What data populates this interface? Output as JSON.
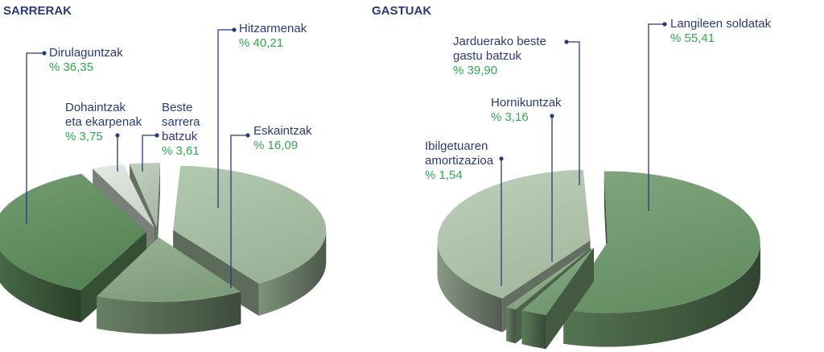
{
  "colors": {
    "label_text": "#2b3a78",
    "value_text": "#2fa84f",
    "leader": "#2b3a78"
  },
  "chart_data": [
    {
      "type": "pie",
      "title": "SARRERAK",
      "three_d": true,
      "exploded": true,
      "slices": [
        {
          "label": [
            "Hitzarmenak"
          ],
          "value_text": "% 40,21",
          "value": 40.21,
          "color": "#a9c3a5"
        },
        {
          "label": [
            "Eskaintzak"
          ],
          "value_text": "% 16,09",
          "value": 16.09,
          "color": "#8aaa86"
        },
        {
          "label": [
            "Dirulaguntzak"
          ],
          "value_text": "% 36,35",
          "value": 36.35,
          "color": "#5f8f5e"
        },
        {
          "label": [
            "Dohaintzak",
            "eta ekarpenak"
          ],
          "value_text": "% 3,75",
          "value": 3.75,
          "color": "#dfe7dd"
        },
        {
          "label": [
            "Beste",
            "sarrera",
            "batzuk"
          ],
          "value_text": "% 3,61",
          "value": 3.61,
          "color": "#b7cbb4"
        }
      ]
    },
    {
      "type": "pie",
      "title": "GASTUAK",
      "three_d": true,
      "exploded": true,
      "slices": [
        {
          "label": [
            "Langileen soldatak"
          ],
          "value_text": "% 55,41",
          "value": 55.41,
          "color": "#6f9a6c"
        },
        {
          "label": [
            "Hornikuntzak"
          ],
          "value_text": "% 3,16",
          "value": 3.16,
          "color": "#7aa277"
        },
        {
          "label": [
            "Ibilgetuaren",
            "amortizazioa"
          ],
          "value_text": "% 1,54",
          "value": 1.54,
          "color": "#8caf88"
        },
        {
          "label": [
            "Jarduerako beste",
            "gastu batzuk"
          ],
          "value_text": "% 39,90",
          "value": 39.9,
          "color": "#b4cab0"
        }
      ]
    }
  ]
}
